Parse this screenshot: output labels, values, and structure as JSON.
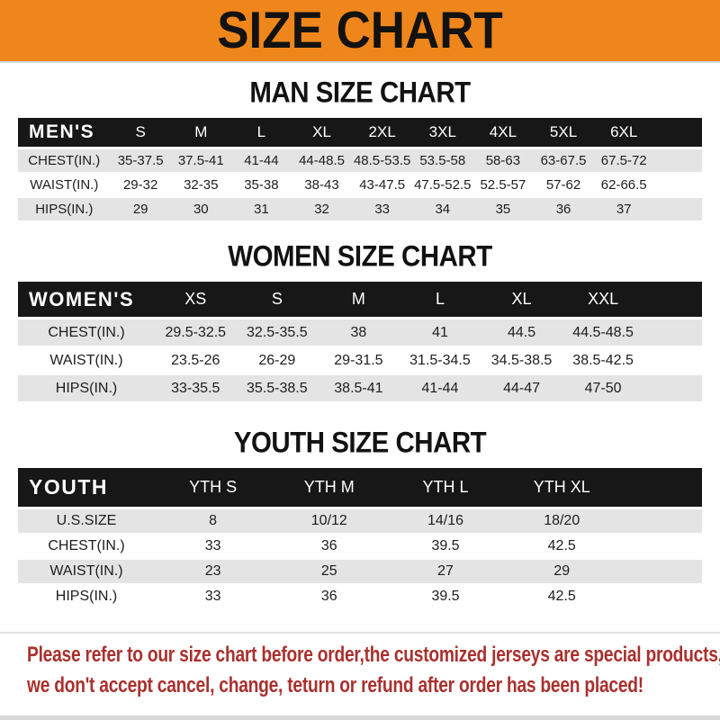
{
  "banner": {
    "title": "SIZE CHART"
  },
  "sections": [
    {
      "title": "MAN SIZE CHART",
      "table": {
        "header_label": "MEN'S",
        "columns": [
          "S",
          "M",
          "L",
          "XL",
          "2XL",
          "3XL",
          "4XL",
          "5XL",
          "6XL"
        ],
        "rows": [
          {
            "label": "CHEST(IN.)",
            "values": [
              "35-37.5",
              "37.5-41",
              "41-44",
              "44-48.5",
              "48.5-53.5",
              "53.5-58",
              "58-63",
              "63-67.5",
              "67.5-72"
            ]
          },
          {
            "label": "WAIST(IN.)",
            "values": [
              "29-32",
              "32-35",
              "35-38",
              "38-43",
              "43-47.5",
              "47.5-52.5",
              "52.5-57",
              "57-62",
              "62-66.5"
            ]
          },
          {
            "label": "HIPS(IN.)",
            "values": [
              "29",
              "30",
              "31",
              "32",
              "33",
              "34",
              "35",
              "36",
              "37"
            ]
          }
        ]
      }
    },
    {
      "title": "WOMEN SIZE CHART",
      "table": {
        "header_label": "WOMEN'S",
        "columns": [
          "XS",
          "S",
          "M",
          "L",
          "XL",
          "XXL"
        ],
        "rows": [
          {
            "label": "CHEST(IN.)",
            "values": [
              "29.5-32.5",
              "32.5-35.5",
              "38",
              "41",
              "44.5",
              "44.5-48.5"
            ]
          },
          {
            "label": "WAIST(IN.)",
            "values": [
              "23.5-26",
              "26-29",
              "29-31.5",
              "31.5-34.5",
              "34.5-38.5",
              "38.5-42.5"
            ]
          },
          {
            "label": "HIPS(IN.)",
            "values": [
              "33-35.5",
              "35.5-38.5",
              "38.5-41",
              "41-44",
              "44-47",
              "47-50"
            ]
          }
        ]
      }
    },
    {
      "title": "YOUTH SIZE CHART",
      "table": {
        "header_label": "YOUTH",
        "columns": [
          "YTH S",
          "YTH M",
          "YTH L",
          "YTH XL"
        ],
        "rows": [
          {
            "label": "U.S.SIZE",
            "values": [
              "8",
              "10/12",
              "14/16",
              "18/20"
            ]
          },
          {
            "label": "CHEST(IN.)",
            "values": [
              "33",
              "36",
              "39.5",
              "42.5"
            ]
          },
          {
            "label": "WAIST(IN.)",
            "values": [
              "23",
              "25",
              "27",
              "29"
            ]
          },
          {
            "label": "HIPS(IN.)",
            "values": [
              "33",
              "36",
              "39.5",
              "42.5"
            ]
          }
        ]
      }
    }
  ],
  "disclaimer": {
    "line1": "Please refer to our size chart before order,the customized jerseys are special products,",
    "line2": "we don't accept cancel, change, teturn or refund after order has been placed!"
  },
  "colors": {
    "banner_orange": "#EF861B",
    "header_black": "#171717",
    "row_gray": "#E4E4E4",
    "disclaimer_red": "#A8312E"
  }
}
